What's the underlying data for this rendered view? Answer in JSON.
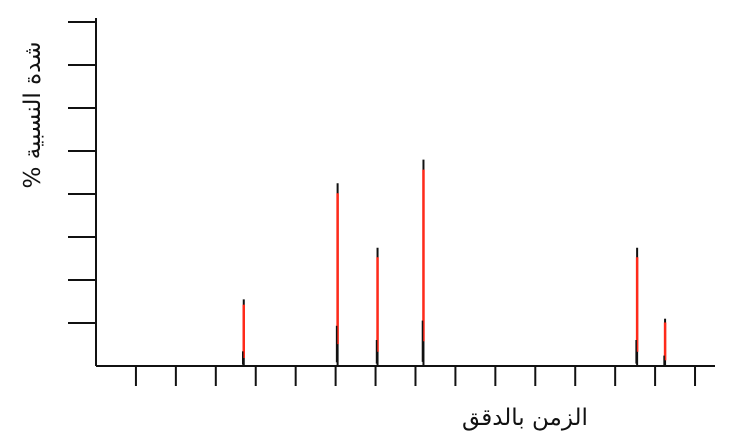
{
  "chart_data": {
    "type": "bar",
    "title": "",
    "xlabel": "الزمن بالدقق",
    "ylabel": "% شدة النسبية",
    "xlim": [
      0,
      31
    ],
    "ylim": [
      0,
      8
    ],
    "x_ticks": [
      2,
      4,
      6,
      8,
      10,
      12,
      14,
      16,
      18,
      20,
      22,
      24,
      26,
      28,
      30
    ],
    "y_ticks": [
      1,
      2,
      3,
      4,
      5,
      6,
      7,
      8
    ],
    "tick_labels_visible": false,
    "grid": false,
    "peak_colors": {
      "red": "#ff2a1a",
      "black": "#111111"
    },
    "peaks": [
      {
        "x": 7.4,
        "y": 1.55
      },
      {
        "x": 12.1,
        "y": 4.25
      },
      {
        "x": 14.1,
        "y": 2.75
      },
      {
        "x": 16.4,
        "y": 4.8
      },
      {
        "x": 27.1,
        "y": 2.75
      },
      {
        "x": 28.5,
        "y": 1.1
      }
    ]
  }
}
